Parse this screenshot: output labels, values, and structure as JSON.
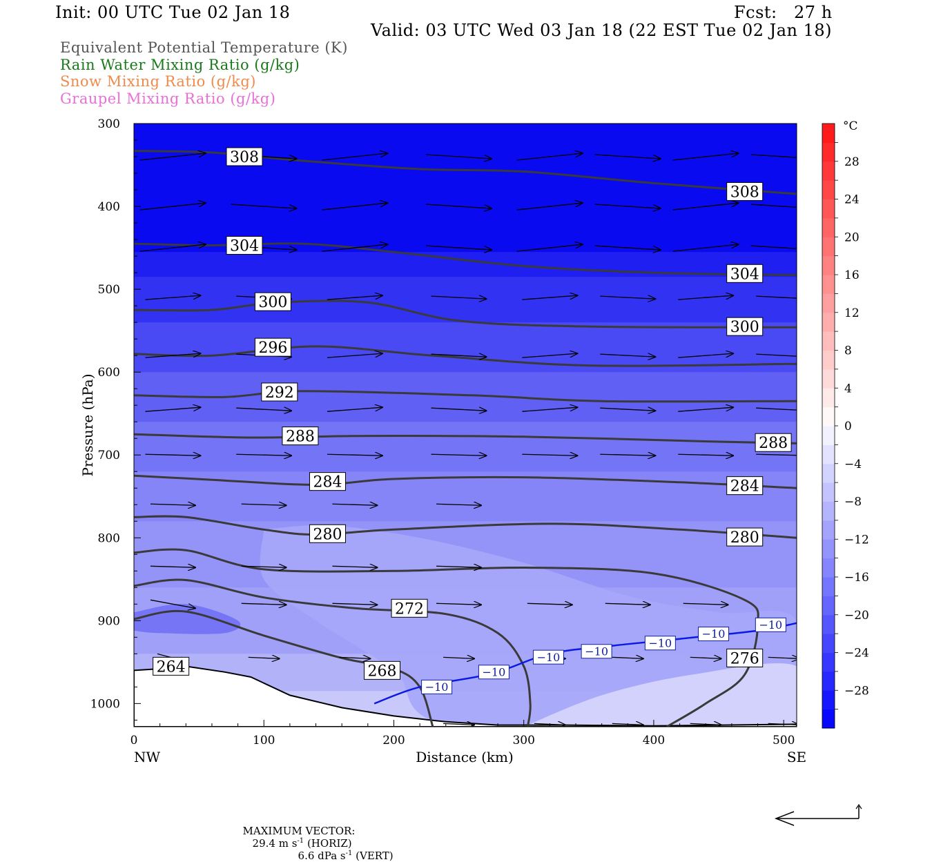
{
  "header": {
    "init": "Init: 00 UTC Tue 02 Jan 18",
    "fcst": "Fcst:   27 h",
    "valid": "Valid: 03 UTC Wed 03 Jan 18 (22 EST Tue 02 Jan 18)"
  },
  "legend_lines": [
    {
      "text": "Equivalent Potential Temperature (K)",
      "color": "#555555"
    },
    {
      "text": "Rain Water Mixing Ratio (g/kg)",
      "color": "#1a7a1a"
    },
    {
      "text": "Snow Mixing Ratio (g/kg)",
      "color": "#f08a4b"
    },
    {
      "text": "Graupel Mixing Ratio (g/kg)",
      "color": "#e870d8"
    }
  ],
  "chart_data": {
    "type": "cross-section",
    "xlabel": "Distance (km)",
    "ylabel": "Pressure (hPa)",
    "x_ticks": [
      0,
      100,
      200,
      300,
      400,
      500
    ],
    "xlim": [
      0,
      510
    ],
    "y_ticks": [
      300,
      400,
      500,
      600,
      700,
      800,
      900,
      1000
    ],
    "ylim": [
      300,
      1028
    ],
    "left_end": "NW",
    "right_end": "SE",
    "colorbar": {
      "unit": "°C",
      "labels": [
        28,
        24,
        20,
        16,
        12,
        8,
        4,
        0,
        -4,
        -8,
        -12,
        -16,
        -20,
        -24,
        -28
      ],
      "range": [
        -32,
        32
      ]
    },
    "theta_e_contours": [
      {
        "value": 308,
        "points": [
          [
            0,
            333
          ],
          [
            60,
            335
          ],
          [
            130,
            345
          ],
          [
            220,
            355
          ],
          [
            300,
            358
          ],
          [
            400,
            372
          ],
          [
            510,
            385
          ]
        ],
        "labels": [
          [
            85,
            340
          ],
          [
            470,
            382
          ]
        ]
      },
      {
        "value": 304,
        "points": [
          [
            0,
            445
          ],
          [
            60,
            447
          ],
          [
            130,
            445
          ],
          [
            200,
            455
          ],
          [
            300,
            472
          ],
          [
            400,
            480
          ],
          [
            510,
            483
          ]
        ],
        "labels": [
          [
            85,
            447
          ],
          [
            470,
            481
          ]
        ]
      },
      {
        "value": 300,
        "points": [
          [
            0,
            525
          ],
          [
            60,
            525
          ],
          [
            110,
            516
          ],
          [
            180,
            516
          ],
          [
            250,
            538
          ],
          [
            350,
            545
          ],
          [
            510,
            546
          ]
        ],
        "labels": [
          [
            107,
            515
          ],
          [
            470,
            545
          ]
        ]
      },
      {
        "value": 296,
        "points": [
          [
            0,
            578
          ],
          [
            60,
            580
          ],
          [
            140,
            569
          ],
          [
            230,
            580
          ],
          [
            350,
            592
          ],
          [
            510,
            590
          ]
        ],
        "labels": [
          [
            107,
            570
          ]
        ]
      },
      {
        "value": 292,
        "points": [
          [
            0,
            628
          ],
          [
            70,
            630
          ],
          [
            130,
            623
          ],
          [
            260,
            628
          ],
          [
            360,
            635
          ],
          [
            510,
            635
          ]
        ],
        "labels": [
          [
            112,
            624
          ]
        ]
      },
      {
        "value": 288,
        "points": [
          [
            0,
            675
          ],
          [
            90,
            679
          ],
          [
            180,
            677
          ],
          [
            300,
            678
          ],
          [
            450,
            684
          ],
          [
            510,
            686
          ]
        ],
        "labels": [
          [
            128,
            677
          ],
          [
            492,
            685
          ]
        ]
      },
      {
        "value": 284,
        "points": [
          [
            0,
            725
          ],
          [
            60,
            730
          ],
          [
            140,
            736
          ],
          [
            200,
            729
          ],
          [
            300,
            727
          ],
          [
            420,
            733
          ],
          [
            510,
            740
          ]
        ],
        "labels": [
          [
            149,
            732
          ],
          [
            470,
            737
          ]
        ]
      },
      {
        "value": 280,
        "points": [
          [
            0,
            775
          ],
          [
            40,
            775
          ],
          [
            100,
            790
          ],
          [
            140,
            796
          ],
          [
            200,
            790
          ],
          [
            320,
            783
          ],
          [
            420,
            790
          ],
          [
            510,
            800
          ]
        ],
        "labels": [
          [
            149,
            795
          ],
          [
            470,
            799
          ]
        ]
      },
      {
        "value": 276,
        "points": [
          [
            0,
            818
          ],
          [
            40,
            815
          ],
          [
            100,
            838
          ],
          [
            200,
            840
          ],
          [
            300,
            836
          ],
          [
            400,
            843
          ],
          [
            470,
            875
          ],
          [
            480,
            905
          ],
          [
            470,
            965
          ],
          [
            440,
            1000
          ],
          [
            410,
            1028
          ]
        ],
        "labels": [
          [
            470,
            945
          ]
        ]
      },
      {
        "value": 272,
        "points": [
          [
            0,
            858
          ],
          [
            40,
            851
          ],
          [
            100,
            872
          ],
          [
            170,
            885
          ],
          [
            240,
            892
          ],
          [
            280,
            915
          ],
          [
            300,
            955
          ],
          [
            305,
            1000
          ],
          [
            303,
            1028
          ]
        ],
        "labels": [
          [
            212,
            885
          ]
        ]
      },
      {
        "value": 268,
        "points": [
          [
            0,
            898
          ],
          [
            40,
            889
          ],
          [
            100,
            918
          ],
          [
            160,
            945
          ],
          [
            200,
            958
          ],
          [
            220,
            980
          ],
          [
            230,
            1028
          ]
        ],
        "labels": [
          [
            191,
            960
          ]
        ]
      }
    ],
    "zero_label": {
      "value": 264,
      "at": [
        20,
        955
      ]
    },
    "isotherm": {
      "value": -10,
      "points": [
        [
          185,
          1000
        ],
        [
          220,
          980
        ],
        [
          275,
          964
        ],
        [
          320,
          940
        ],
        [
          370,
          930
        ],
        [
          420,
          922
        ],
        [
          480,
          912
        ],
        [
          510,
          903
        ]
      ],
      "labels": [
        [
          233,
          980
        ],
        [
          277,
          962
        ],
        [
          319,
          944
        ],
        [
          356,
          937
        ],
        [
          405,
          927
        ],
        [
          446,
          916
        ],
        [
          490,
          905
        ]
      ],
      "label_text": "-10"
    },
    "terrain": [
      [
        0,
        960
      ],
      [
        20,
        958
      ],
      [
        40,
        955
      ],
      [
        70,
        962
      ],
      [
        90,
        968
      ],
      [
        120,
        990
      ],
      [
        160,
        1005
      ],
      [
        200,
        1015
      ],
      [
        240,
        1022
      ],
      [
        280,
        1026
      ],
      [
        330,
        1026
      ],
      [
        400,
        1027
      ],
      [
        510,
        1025
      ]
    ],
    "wind_arrows": {
      "rows": [
        {
          "p": 340,
          "x": [
            30,
            100,
            170,
            250,
            320,
            380,
            440,
            500
          ]
        },
        {
          "p": 400,
          "x": [
            30,
            100,
            170,
            250,
            320,
            380,
            440,
            500
          ]
        },
        {
          "p": 450,
          "x": [
            30,
            100,
            170,
            250,
            320,
            380,
            440,
            500
          ]
        },
        {
          "p": 510,
          "x": [
            30,
            100,
            170,
            250,
            320,
            380,
            440,
            500
          ]
        },
        {
          "p": 580,
          "x": [
            30,
            100,
            170,
            250,
            320,
            380,
            440,
            500
          ]
        },
        {
          "p": 645,
          "x": [
            30,
            100,
            170,
            250,
            320,
            380,
            440,
            500
          ]
        },
        {
          "p": 700,
          "x": [
            30,
            100,
            170,
            250,
            320,
            380,
            440,
            500
          ]
        },
        {
          "p": 760,
          "x": [
            30,
            100,
            170,
            250
          ]
        },
        {
          "p": 835,
          "x": [
            30,
            100,
            170,
            250
          ]
        },
        {
          "p": 880,
          "x": [
            30,
            100,
            170,
            250,
            320,
            380,
            440
          ]
        },
        {
          "p": 945,
          "x": [
            30,
            100,
            170,
            250,
            320,
            380,
            440,
            500
          ]
        },
        {
          "p": 1025,
          "x": [
            250,
            320,
            380,
            440,
            500
          ]
        }
      ]
    }
  },
  "footer": {
    "max_vector_label": "MAXIMUM VECTOR:",
    "horiz": "29.4 m s",
    "horiz_exp": "-1",
    "horiz_tag": "(HORIZ)",
    "vert": "6.6 dPa s",
    "vert_exp": "-1",
    "vert_tag": "(VERT)"
  }
}
